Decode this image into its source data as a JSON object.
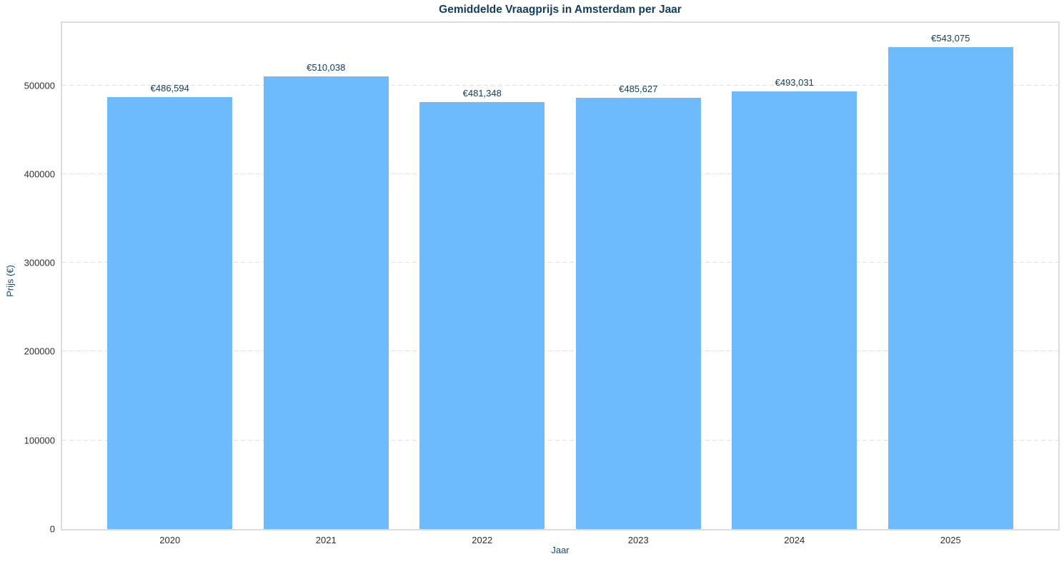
{
  "chart_data": {
    "type": "bar",
    "title": "Gemiddelde Vraagprijs in Amsterdam per Jaar",
    "xlabel": "Jaar",
    "ylabel": "Prijs (€)",
    "categories": [
      "2020",
      "2021",
      "2022",
      "2023",
      "2024",
      "2025"
    ],
    "values": [
      486594,
      510038,
      481348,
      485627,
      493031,
      543075
    ],
    "bar_labels": [
      "€486,594",
      "€510,038",
      "€481,348",
      "€485,627",
      "€493,031",
      "€543,075"
    ],
    "yticks": [
      0,
      100000,
      200000,
      300000,
      400000,
      500000
    ],
    "ytick_labels": [
      "0",
      "100000",
      "200000",
      "300000",
      "400000",
      "500000"
    ],
    "ylim": [
      0,
      570500
    ],
    "grid": "horizontal-dashed",
    "legend": "none",
    "colors": {
      "bar": "#6dbbfc",
      "title": "#133d60",
      "axis_label": "#15486b",
      "tick_label": "#2e2e2e",
      "bar_value_label": "#133d60",
      "grid": "#dedede",
      "spine": "#dcdcdc",
      "background": "#ffffff"
    }
  }
}
